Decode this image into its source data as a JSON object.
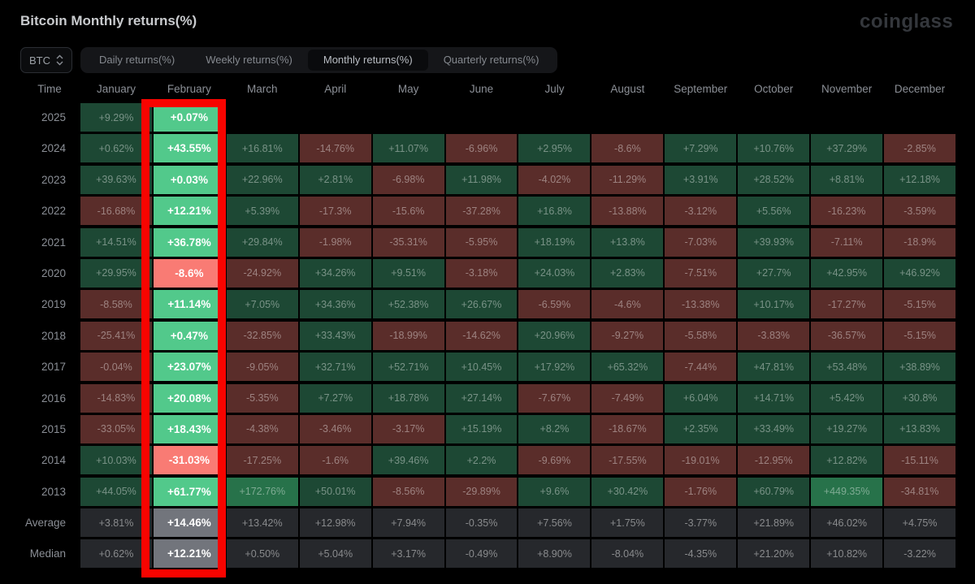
{
  "header": {
    "title": "Bitcoin Monthly returns(%)",
    "logo": "coinglass"
  },
  "controls": {
    "symbol": "BTC",
    "tabs": [
      {
        "label": "Daily returns(%)",
        "active": false
      },
      {
        "label": "Weekly returns(%)",
        "active": false
      },
      {
        "label": "Monthly returns(%)",
        "active": true
      },
      {
        "label": "Quarterly returns(%)",
        "active": false
      }
    ]
  },
  "highlight": {
    "column": "February",
    "border_color": "#f80400"
  },
  "colors": {
    "positive_cell": "#1d4834",
    "positive_cell_strong": "#27724a",
    "negative_cell": "#5a2d2a",
    "summary_cell": "#26282c",
    "highlight_positive": "#52c98b",
    "highlight_negative": "#f97b74",
    "highlight_summary": "#72757c"
  },
  "table": {
    "columns": [
      "Time",
      "January",
      "February",
      "March",
      "April",
      "May",
      "June",
      "July",
      "August",
      "September",
      "October",
      "November",
      "December"
    ],
    "rows": [
      {
        "label": "2025",
        "type": "year",
        "cells": [
          "+9.29%",
          "+0.07%",
          "",
          "",
          "",
          "",
          "",
          "",
          "",
          "",
          "",
          ""
        ]
      },
      {
        "label": "2024",
        "type": "year",
        "cells": [
          "+0.62%",
          "+43.55%",
          "+16.81%",
          "-14.76%",
          "+11.07%",
          "-6.96%",
          "+2.95%",
          "-8.6%",
          "+7.29%",
          "+10.76%",
          "+37.29%",
          "-2.85%"
        ]
      },
      {
        "label": "2023",
        "type": "year",
        "cells": [
          "+39.63%",
          "+0.03%",
          "+22.96%",
          "+2.81%",
          "-6.98%",
          "+11.98%",
          "-4.02%",
          "-11.29%",
          "+3.91%",
          "+28.52%",
          "+8.81%",
          "+12.18%"
        ]
      },
      {
        "label": "2022",
        "type": "year",
        "cells": [
          "-16.68%",
          "+12.21%",
          "+5.39%",
          "-17.3%",
          "-15.6%",
          "-37.28%",
          "+16.8%",
          "-13.88%",
          "-3.12%",
          "+5.56%",
          "-16.23%",
          "-3.59%"
        ]
      },
      {
        "label": "2021",
        "type": "year",
        "cells": [
          "+14.51%",
          "+36.78%",
          "+29.84%",
          "-1.98%",
          "-35.31%",
          "-5.95%",
          "+18.19%",
          "+13.8%",
          "-7.03%",
          "+39.93%",
          "-7.11%",
          "-18.9%"
        ]
      },
      {
        "label": "2020",
        "type": "year",
        "cells": [
          "+29.95%",
          "-8.6%",
          "-24.92%",
          "+34.26%",
          "+9.51%",
          "-3.18%",
          "+24.03%",
          "+2.83%",
          "-7.51%",
          "+27.7%",
          "+42.95%",
          "+46.92%"
        ]
      },
      {
        "label": "2019",
        "type": "year",
        "cells": [
          "-8.58%",
          "+11.14%",
          "+7.05%",
          "+34.36%",
          "+52.38%",
          "+26.67%",
          "-6.59%",
          "-4.6%",
          "-13.38%",
          "+10.17%",
          "-17.27%",
          "-5.15%"
        ]
      },
      {
        "label": "2018",
        "type": "year",
        "cells": [
          "-25.41%",
          "+0.47%",
          "-32.85%",
          "+33.43%",
          "-18.99%",
          "-14.62%",
          "+20.96%",
          "-9.27%",
          "-5.58%",
          "-3.83%",
          "-36.57%",
          "-5.15%"
        ]
      },
      {
        "label": "2017",
        "type": "year",
        "cells": [
          "-0.04%",
          "+23.07%",
          "-9.05%",
          "+32.71%",
          "+52.71%",
          "+10.45%",
          "+17.92%",
          "+65.32%",
          "-7.44%",
          "+47.81%",
          "+53.48%",
          "+38.89%"
        ]
      },
      {
        "label": "2016",
        "type": "year",
        "cells": [
          "-14.83%",
          "+20.08%",
          "-5.35%",
          "+7.27%",
          "+18.78%",
          "+27.14%",
          "-7.67%",
          "-7.49%",
          "+6.04%",
          "+14.71%",
          "+5.42%",
          "+30.8%"
        ]
      },
      {
        "label": "2015",
        "type": "year",
        "cells": [
          "-33.05%",
          "+18.43%",
          "-4.38%",
          "-3.46%",
          "-3.17%",
          "+15.19%",
          "+8.2%",
          "-18.67%",
          "+2.35%",
          "+33.49%",
          "+19.27%",
          "+13.83%"
        ]
      },
      {
        "label": "2014",
        "type": "year",
        "cells": [
          "+10.03%",
          "-31.03%",
          "-17.25%",
          "-1.6%",
          "+39.46%",
          "+2.2%",
          "-9.69%",
          "-17.55%",
          "-19.01%",
          "-12.95%",
          "+12.82%",
          "-15.11%"
        ]
      },
      {
        "label": "2013",
        "type": "year",
        "cells": [
          "+44.05%",
          "+61.77%",
          "+172.76%",
          "+50.01%",
          "-8.56%",
          "-29.89%",
          "+9.6%",
          "+30.42%",
          "-1.76%",
          "+60.79%",
          "+449.35%",
          "-34.81%"
        ]
      },
      {
        "label": "Average",
        "type": "summary",
        "cells": [
          "+3.81%",
          "+14.46%",
          "+13.42%",
          "+12.98%",
          "+7.94%",
          "-0.35%",
          "+7.56%",
          "+1.75%",
          "-3.77%",
          "+21.89%",
          "+46.02%",
          "+4.75%"
        ]
      },
      {
        "label": "Median",
        "type": "summary",
        "cells": [
          "+0.62%",
          "+12.21%",
          "+0.50%",
          "+5.04%",
          "+3.17%",
          "-0.49%",
          "+8.90%",
          "-8.04%",
          "-4.35%",
          "+21.20%",
          "+10.82%",
          "-3.22%"
        ]
      }
    ]
  }
}
